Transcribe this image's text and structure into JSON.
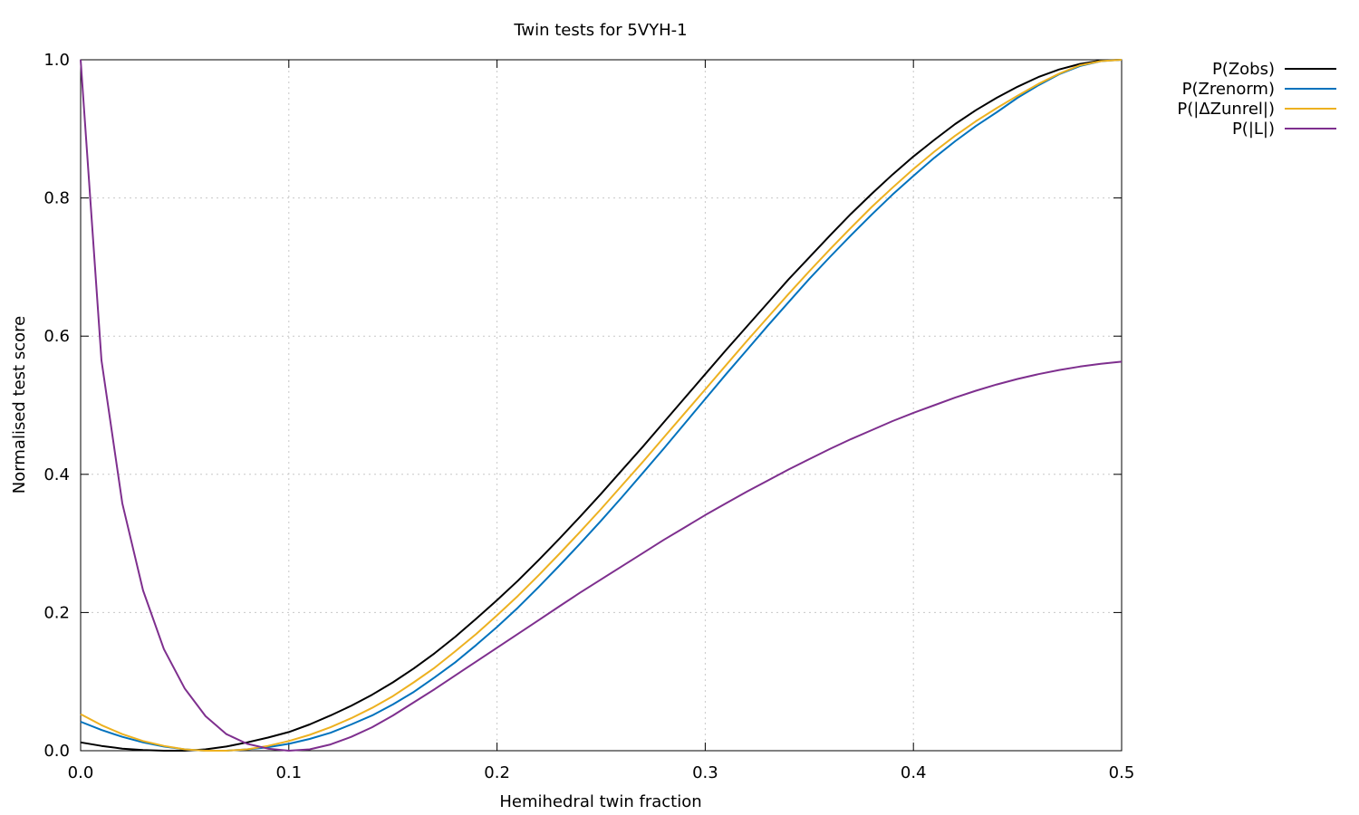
{
  "chart_data": {
    "type": "line",
    "title": "Twin tests for 5VYH-1",
    "xlabel": "Hemihedral twin fraction",
    "ylabel": "Normalised test score",
    "xlim": [
      0.0,
      0.5
    ],
    "ylim": [
      0.0,
      1.0
    ],
    "xticks": [
      "0.0",
      "0.1",
      "0.2",
      "0.3",
      "0.4",
      "0.5"
    ],
    "yticks": [
      "0.0",
      "0.2",
      "0.4",
      "0.6",
      "0.8",
      "1.0"
    ],
    "grid": true,
    "legend_position": "top-right outside",
    "series": [
      {
        "name": "P(Zobs)",
        "color": "#000000",
        "x": [
          0.0,
          0.01,
          0.02,
          0.03,
          0.04,
          0.05,
          0.06,
          0.07,
          0.08,
          0.09,
          0.1,
          0.11,
          0.12,
          0.13,
          0.14,
          0.15,
          0.16,
          0.17,
          0.18,
          0.19,
          0.2,
          0.21,
          0.22,
          0.23,
          0.24,
          0.25,
          0.26,
          0.27,
          0.28,
          0.29,
          0.3,
          0.31,
          0.32,
          0.33,
          0.34,
          0.35,
          0.36,
          0.37,
          0.38,
          0.39,
          0.4,
          0.41,
          0.42,
          0.43,
          0.44,
          0.45,
          0.46,
          0.47,
          0.48,
          0.49,
          0.5
        ],
        "y": [
          0.012,
          0.007,
          0.003,
          0.001,
          0.0,
          0.0,
          0.002,
          0.006,
          0.012,
          0.019,
          0.027,
          0.038,
          0.051,
          0.065,
          0.081,
          0.099,
          0.119,
          0.141,
          0.165,
          0.191,
          0.218,
          0.246,
          0.276,
          0.307,
          0.339,
          0.372,
          0.406,
          0.44,
          0.475,
          0.51,
          0.545,
          0.58,
          0.614,
          0.648,
          0.682,
          0.714,
          0.746,
          0.777,
          0.806,
          0.834,
          0.86,
          0.884,
          0.907,
          0.927,
          0.945,
          0.961,
          0.975,
          0.986,
          0.994,
          0.999,
          1.0
        ]
      },
      {
        "name": "P(Zrenorm)",
        "color": "#0072bd",
        "x": [
          0.0,
          0.01,
          0.02,
          0.03,
          0.04,
          0.05,
          0.06,
          0.07,
          0.08,
          0.09,
          0.1,
          0.11,
          0.12,
          0.13,
          0.14,
          0.15,
          0.16,
          0.17,
          0.18,
          0.19,
          0.2,
          0.21,
          0.22,
          0.23,
          0.24,
          0.25,
          0.26,
          0.27,
          0.28,
          0.29,
          0.3,
          0.31,
          0.32,
          0.33,
          0.34,
          0.35,
          0.36,
          0.37,
          0.38,
          0.39,
          0.4,
          0.41,
          0.42,
          0.43,
          0.44,
          0.45,
          0.46,
          0.47,
          0.48,
          0.49,
          0.5
        ],
        "y": [
          0.042,
          0.03,
          0.02,
          0.012,
          0.006,
          0.002,
          0.0,
          0.0,
          0.002,
          0.005,
          0.01,
          0.017,
          0.026,
          0.038,
          0.051,
          0.067,
          0.085,
          0.106,
          0.128,
          0.153,
          0.179,
          0.207,
          0.237,
          0.268,
          0.3,
          0.333,
          0.367,
          0.402,
          0.437,
          0.473,
          0.509,
          0.545,
          0.58,
          0.615,
          0.649,
          0.683,
          0.715,
          0.746,
          0.776,
          0.805,
          0.832,
          0.858,
          0.882,
          0.904,
          0.924,
          0.945,
          0.963,
          0.979,
          0.991,
          0.998,
          1.0
        ]
      },
      {
        "name": "P(|ΔZunrel|)",
        "color": "#edb120",
        "x": [
          0.0,
          0.01,
          0.02,
          0.03,
          0.04,
          0.05,
          0.06,
          0.07,
          0.08,
          0.09,
          0.1,
          0.11,
          0.12,
          0.13,
          0.14,
          0.15,
          0.16,
          0.17,
          0.18,
          0.19,
          0.2,
          0.21,
          0.22,
          0.23,
          0.24,
          0.25,
          0.26,
          0.27,
          0.28,
          0.29,
          0.3,
          0.31,
          0.32,
          0.33,
          0.34,
          0.35,
          0.36,
          0.37,
          0.38,
          0.39,
          0.4,
          0.41,
          0.42,
          0.43,
          0.44,
          0.45,
          0.46,
          0.47,
          0.48,
          0.49,
          0.5
        ],
        "y": [
          0.053,
          0.037,
          0.024,
          0.014,
          0.007,
          0.002,
          0.0,
          0.0,
          0.002,
          0.007,
          0.014,
          0.023,
          0.034,
          0.047,
          0.062,
          0.079,
          0.099,
          0.12,
          0.144,
          0.169,
          0.196,
          0.224,
          0.254,
          0.285,
          0.317,
          0.35,
          0.384,
          0.418,
          0.453,
          0.488,
          0.523,
          0.558,
          0.593,
          0.627,
          0.661,
          0.694,
          0.726,
          0.757,
          0.787,
          0.815,
          0.842,
          0.867,
          0.89,
          0.911,
          0.93,
          0.948,
          0.965,
          0.98,
          0.992,
          0.998,
          1.0
        ]
      },
      {
        "name": "P(|L|)",
        "color": "#7e2f8e",
        "x": [
          0.0,
          0.01,
          0.02,
          0.03,
          0.04,
          0.05,
          0.06,
          0.07,
          0.08,
          0.09,
          0.1,
          0.11,
          0.12,
          0.13,
          0.14,
          0.15,
          0.16,
          0.17,
          0.18,
          0.19,
          0.2,
          0.21,
          0.22,
          0.23,
          0.24,
          0.25,
          0.26,
          0.27,
          0.28,
          0.29,
          0.3,
          0.31,
          0.32,
          0.33,
          0.34,
          0.35,
          0.36,
          0.37,
          0.38,
          0.39,
          0.4,
          0.41,
          0.42,
          0.43,
          0.44,
          0.45,
          0.46,
          0.47,
          0.48,
          0.49,
          0.5
        ],
        "y": [
          1.0,
          0.565,
          0.358,
          0.232,
          0.147,
          0.09,
          0.05,
          0.024,
          0.01,
          0.003,
          0.0,
          0.002,
          0.009,
          0.02,
          0.034,
          0.051,
          0.07,
          0.089,
          0.109,
          0.129,
          0.149,
          0.169,
          0.189,
          0.209,
          0.229,
          0.248,
          0.267,
          0.286,
          0.305,
          0.323,
          0.341,
          0.358,
          0.375,
          0.391,
          0.407,
          0.422,
          0.437,
          0.451,
          0.464,
          0.477,
          0.489,
          0.5,
          0.511,
          0.521,
          0.53,
          0.538,
          0.545,
          0.551,
          0.556,
          0.56,
          0.563
        ]
      }
    ]
  }
}
